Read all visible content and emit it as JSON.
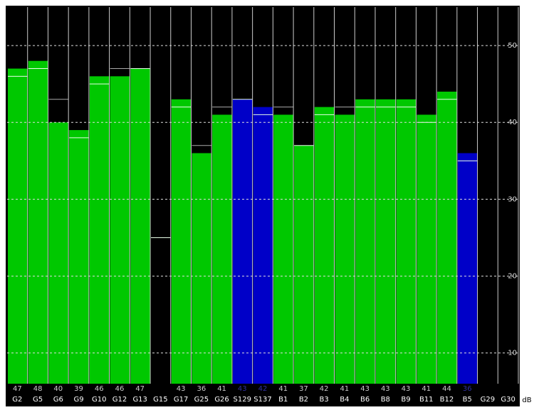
{
  "chart_data": {
    "type": "bar",
    "categories": [
      "G2",
      "G5",
      "G6",
      "G9",
      "G10",
      "G12",
      "G13",
      "G15",
      "G17",
      "G25",
      "G26",
      "S129",
      "S137",
      "B1",
      "B2",
      "B3",
      "B4",
      "B6",
      "B8",
      "B9",
      "B11",
      "B12",
      "B5",
      "G29",
      "G30"
    ],
    "values": [
      47,
      48,
      40,
      39,
      46,
      46,
      47,
      null,
      43,
      36,
      41,
      43,
      42,
      41,
      37,
      42,
      41,
      43,
      43,
      43,
      41,
      44,
      36,
      null,
      null
    ],
    "marker_values": [
      46,
      47,
      43,
      38,
      45,
      47,
      47,
      25,
      42,
      37,
      42,
      43,
      41,
      42,
      37,
      41,
      42,
      42,
      42,
      42,
      40,
      43,
      35,
      null,
      null
    ],
    "bar_colors": [
      "#00c800",
      "#00c800",
      "#00c800",
      "#00c800",
      "#00c800",
      "#00c800",
      "#00c800",
      "#00c800",
      "#00c800",
      "#00c800",
      "#00c800",
      "#0000c8",
      "#0000c8",
      "#00c800",
      "#00c800",
      "#00c800",
      "#00c800",
      "#00c800",
      "#00c800",
      "#00c800",
      "#00c800",
      "#00c800",
      "#0000c8",
      "#00c800",
      "#00c800"
    ],
    "ylim": [
      6,
      55
    ],
    "yticks": [
      10,
      20,
      30,
      40,
      50
    ],
    "y_unit": "dB",
    "grid": true
  }
}
